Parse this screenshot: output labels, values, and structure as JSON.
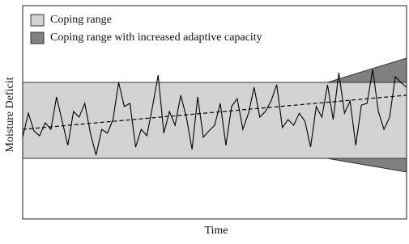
{
  "chart_data": {
    "type": "line",
    "x_label": "Time",
    "y_label": "Moisture Deficit",
    "xlim": [
      0,
      68
    ],
    "ylim": [
      0,
      100
    ],
    "bands": [
      {
        "name": "Coping range",
        "color": "#d3d3d3",
        "x": [
          0,
          68
        ],
        "lower": [
          28.4,
          28.4
        ],
        "upper": [
          64.0,
          64.0
        ]
      },
      {
        "name": "Coping range with increased adaptive capacity",
        "color": "#808080",
        "x": [
          54,
          68
        ],
        "lower": [
          28.4,
          22.0
        ],
        "upper": [
          64.0,
          75.4
        ]
      }
    ],
    "series": [
      {
        "color": "#000000",
        "dash": false,
        "x": [
          0,
          1,
          2,
          3,
          4,
          5,
          6,
          7,
          8,
          9,
          10,
          11,
          12,
          13,
          14,
          15,
          16,
          17,
          18,
          19,
          20,
          21,
          22,
          23,
          24,
          25,
          26,
          27,
          28,
          29,
          30,
          31,
          32,
          33,
          34,
          35,
          36,
          37,
          38,
          39,
          40,
          41,
          42,
          43,
          44,
          45,
          46,
          47,
          48,
          49,
          50,
          51,
          52,
          53,
          54,
          55,
          56,
          57,
          58,
          59,
          60,
          61,
          62,
          63,
          64,
          65,
          66,
          67,
          68
        ],
        "values": [
          38.3,
          49.6,
          41.3,
          39.0,
          45.1,
          42.0,
          57.2,
          45.8,
          34.5,
          50.4,
          47.7,
          54.2,
          40.2,
          29.9,
          42.0,
          40.2,
          46.6,
          64.0,
          52.7,
          54.2,
          33.7,
          42.0,
          39.0,
          52.7,
          67.4,
          40.2,
          50.4,
          43.9,
          58.0,
          47.7,
          32.6,
          57.2,
          38.3,
          41.3,
          43.9,
          54.2,
          34.5,
          52.7,
          56.4,
          42.0,
          49.6,
          61.7,
          47.7,
          50.4,
          55.3,
          62.9,
          42.8,
          46.6,
          43.9,
          49.6,
          45.8,
          33.7,
          52.7,
          47.7,
          62.9,
          46.6,
          68.6,
          49.6,
          55.3,
          34.5,
          53.4,
          54.2,
          70.1,
          50.4,
          42.0,
          47.7,
          66.7,
          64.0,
          61.7
        ]
      },
      {
        "color": "#000000",
        "dash": true,
        "x": [
          0,
          68
        ],
        "values": [
          42.0,
          58.0
        ]
      }
    ]
  }
}
